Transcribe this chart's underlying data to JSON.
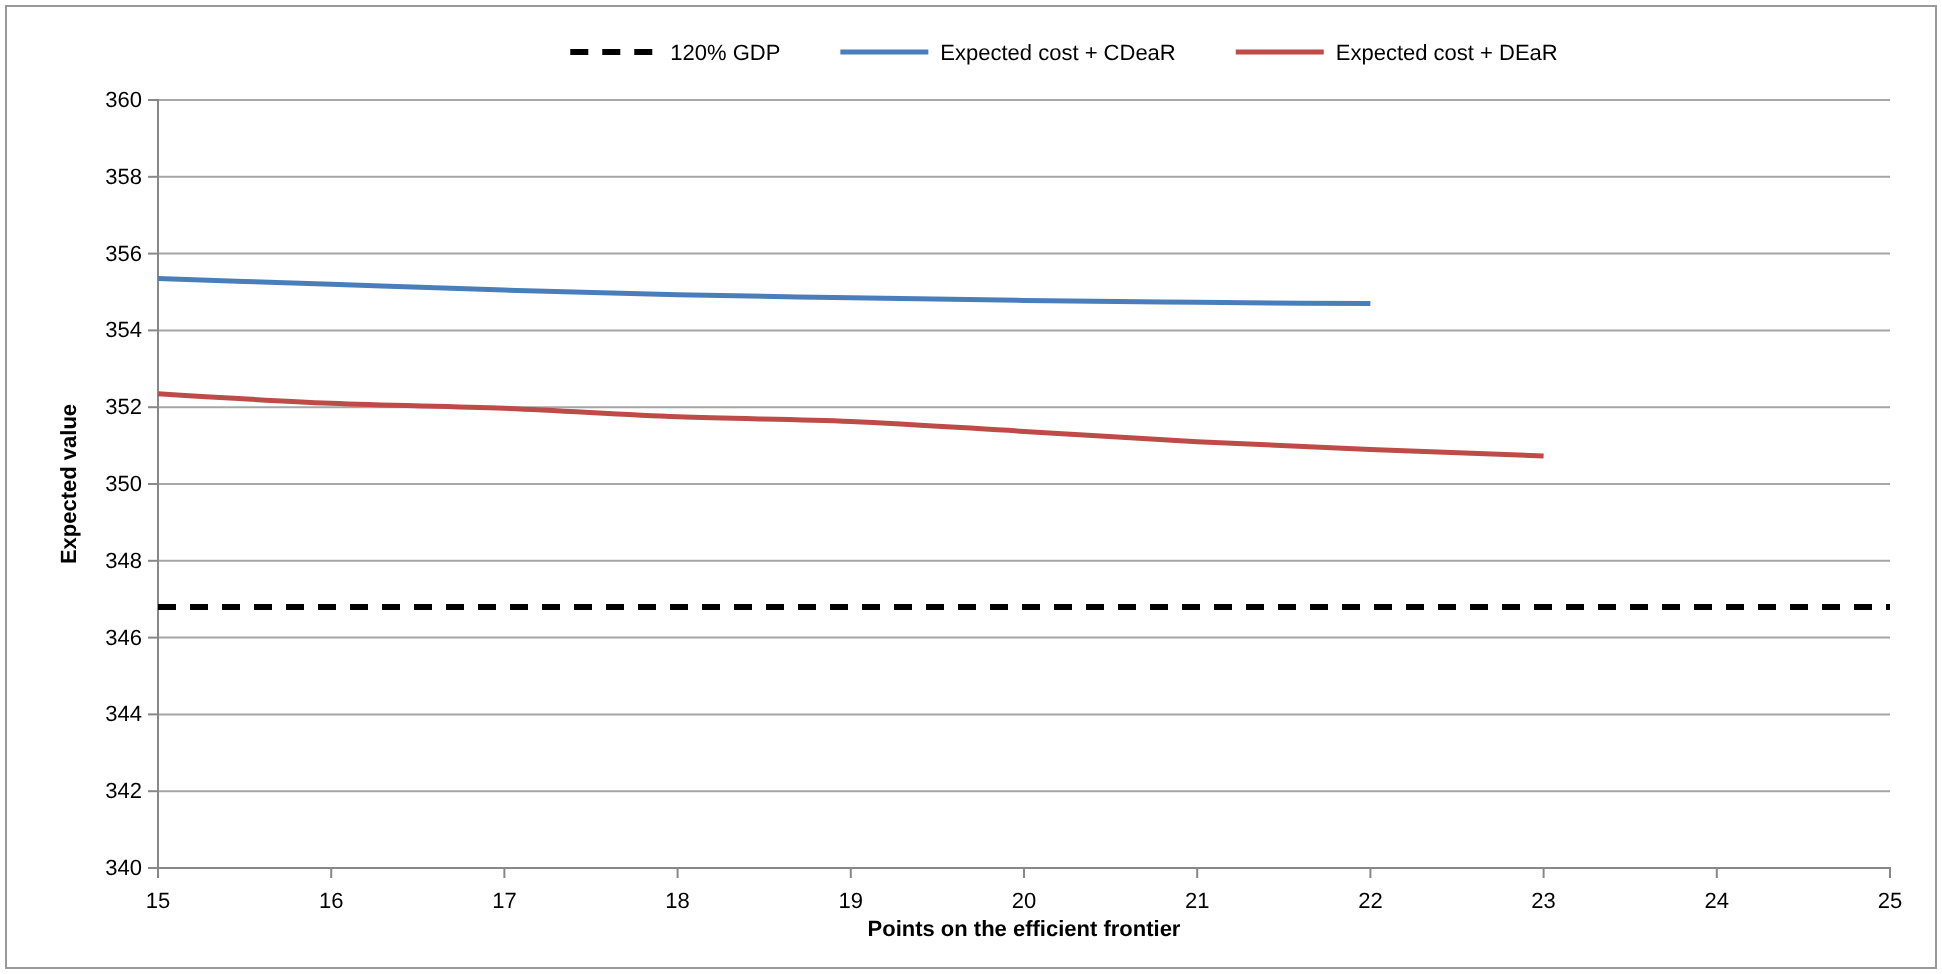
{
  "chart_data": {
    "type": "line",
    "xlabel": "Points on the efficient frontier",
    "ylabel": "Expected value",
    "xlim": [
      15,
      25
    ],
    "xticks": [
      15,
      16,
      17,
      18,
      19,
      20,
      21,
      22,
      23,
      24,
      25
    ],
    "ylim": [
      340,
      360
    ],
    "yticks": [
      340,
      342,
      344,
      346,
      348,
      350,
      352,
      354,
      356,
      358,
      360
    ],
    "grid": "y",
    "legend": "top",
    "marker": "none",
    "series": [
      {
        "name": "120% GDP",
        "color": "#000000",
        "line_style": "dashed",
        "x": [
          15,
          25
        ],
        "values": [
          346.8,
          346.8
        ]
      },
      {
        "name": "Expected cost + CDeaR",
        "color": "#4a7ebb",
        "line_style": "solid",
        "x": [
          15,
          16,
          17,
          18,
          19,
          20,
          21,
          22
        ],
        "values": [
          355.35,
          355.2,
          355.05,
          354.93,
          354.85,
          354.78,
          354.73,
          354.7
        ]
      },
      {
        "name": "Expected cost + DEaR",
        "color": "#be4b48",
        "line_style": "solid",
        "x": [
          15,
          16,
          17,
          18,
          19,
          20,
          21,
          22,
          23
        ],
        "values": [
          352.35,
          352.1,
          351.97,
          351.75,
          351.63,
          351.37,
          351.1,
          350.9,
          350.73
        ]
      }
    ]
  }
}
